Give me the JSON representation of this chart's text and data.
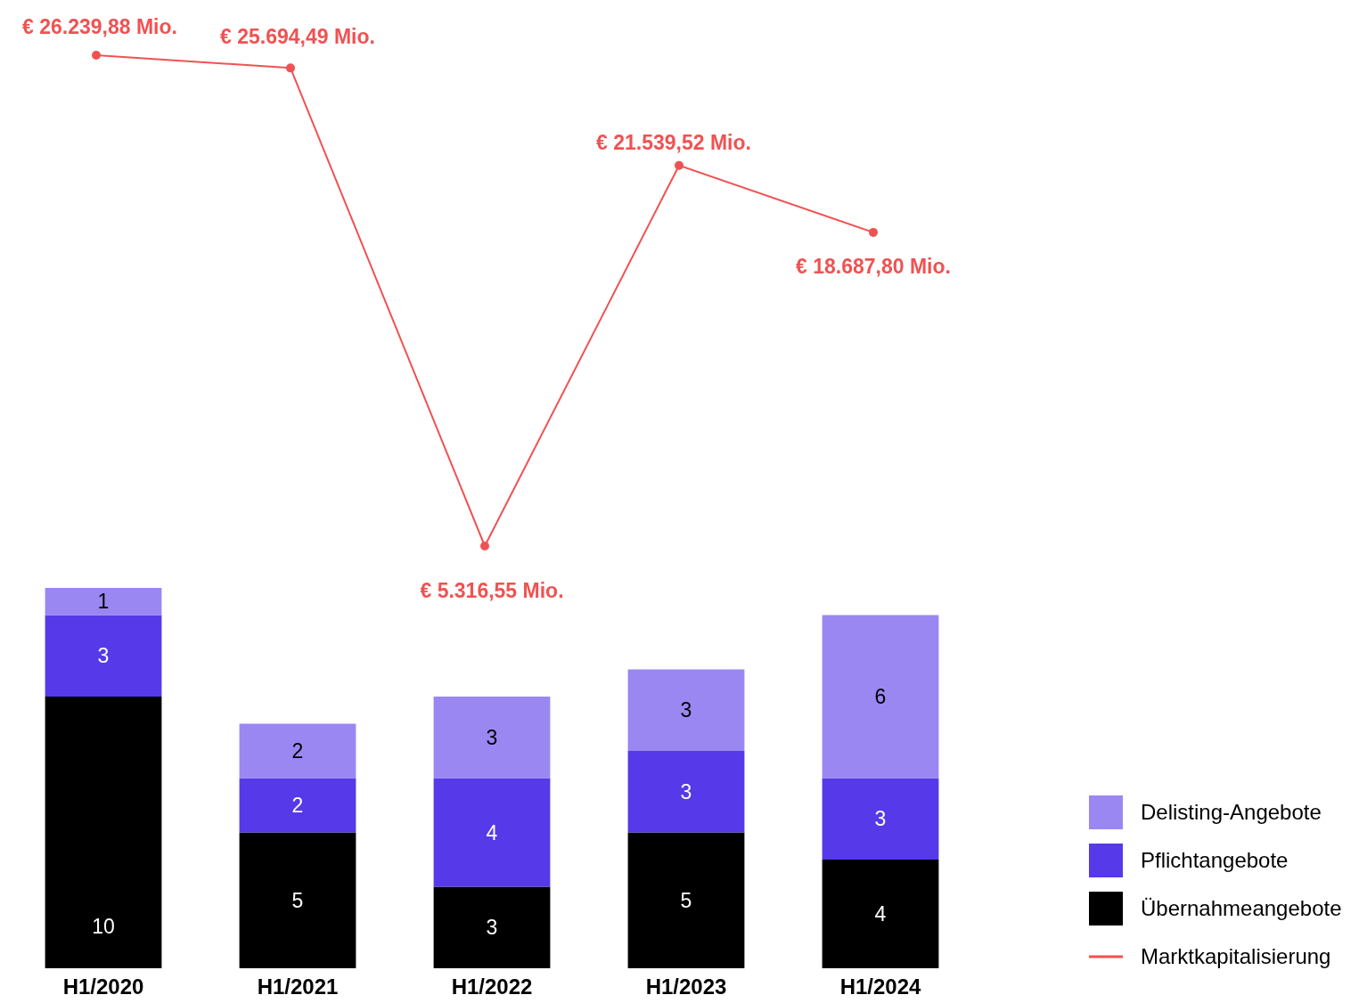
{
  "chart_data": [
    {
      "type": "bar",
      "stacked": true,
      "categories": [
        "H1/2020",
        "H1/2021",
        "H1/2022",
        "H1/2023",
        "H1/2024"
      ],
      "data_labels": true,
      "legend": "bottom right",
      "series": [
        {
          "name": "Übernahmeangebote",
          "color": "#000000",
          "values": [
            10,
            5,
            3,
            5,
            4
          ]
        },
        {
          "name": "Pflichtangebote",
          "color": "#5639e8",
          "values": [
            3,
            2,
            4,
            3,
            3
          ]
        },
        {
          "name": "Delisting-Angebote",
          "color": "#9b87f2",
          "values": [
            1,
            2,
            3,
            3,
            6
          ]
        }
      ]
    },
    {
      "type": "line",
      "marker": "circle",
      "legend": "bottom right",
      "series": [
        {
          "name": "Marktkapitalisierung",
          "color": "#f05252",
          "values": [
            26239.88,
            25694.49,
            5316.55,
            21539.52,
            18687.8
          ],
          "value_labels": [
            "€ 26.239,88 Mio.",
            "€ 25.694,49 Mio.",
            "€ 5.316,55 Mio.",
            "€ 21.539,52 Mio.",
            "€ 18.687,80 Mio."
          ]
        }
      ]
    }
  ]
}
